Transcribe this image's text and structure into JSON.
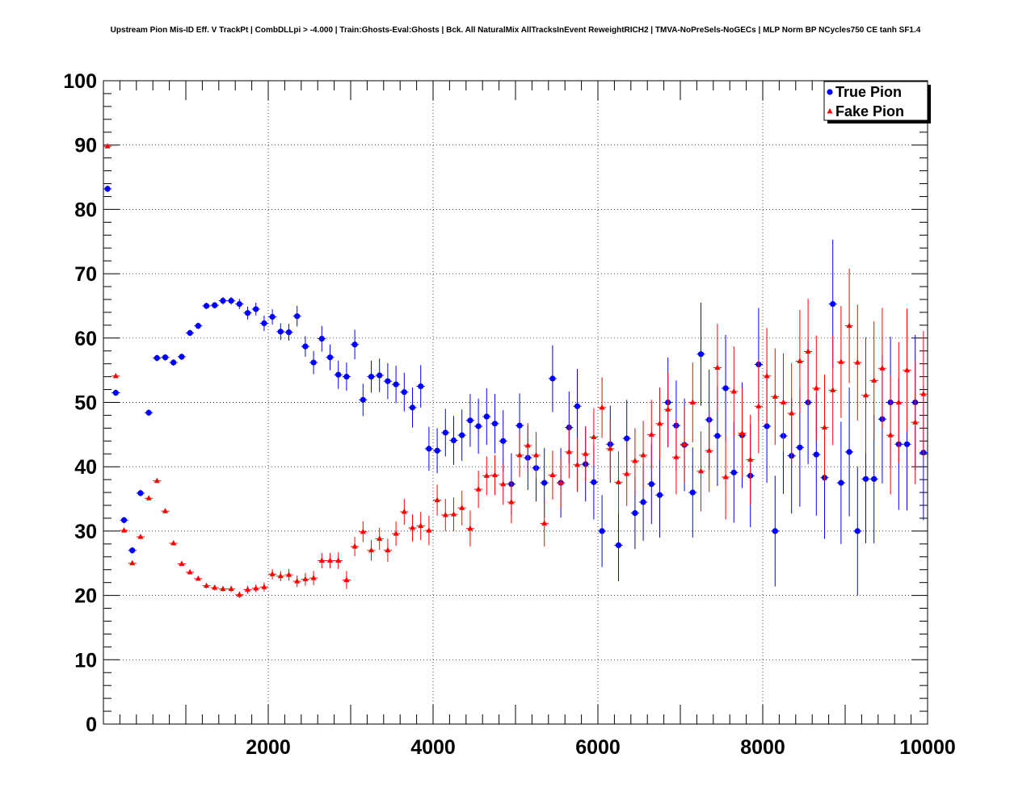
{
  "chart_data": {
    "type": "scatter",
    "title": "Upstream Pion Mis-ID Eff. V TrackPt | CombDLLpi > -4.000 | Train:Ghosts-Eval:Ghosts | Bck. All NaturalMix AllTracksInEvent ReweightRICH2 | TMVA-NoPreSels-NoGECs | MLP Norm BP NCycles750 CE tanh SF1.4",
    "xlabel": "",
    "ylabel": "",
    "xlim": [
      0,
      10000
    ],
    "ylim": [
      0,
      100
    ],
    "xticks": [
      2000,
      4000,
      6000,
      8000,
      10000
    ],
    "yticks": [
      0,
      10,
      20,
      30,
      40,
      50,
      60,
      70,
      80,
      90,
      100
    ],
    "grid": true,
    "legend_position": "top-right",
    "series": [
      {
        "name": "True Pion",
        "color": "#0000ff",
        "marker": "circle",
        "points": [
          [
            50,
            83.2,
            0.5
          ],
          [
            150,
            51.5,
            0.5
          ],
          [
            250,
            31.7,
            0.5
          ],
          [
            350,
            27,
            0.5
          ],
          [
            450,
            35.9,
            0.5
          ],
          [
            550,
            48.4,
            0.5
          ],
          [
            650,
            56.9,
            0.5
          ],
          [
            750,
            57,
            0.5
          ],
          [
            850,
            56.2,
            0.5
          ],
          [
            950,
            57.1,
            0.5
          ],
          [
            1050,
            60.8,
            0.5
          ],
          [
            1150,
            61.9,
            0.5
          ],
          [
            1250,
            65,
            0.5
          ],
          [
            1350,
            65.1,
            0.5
          ],
          [
            1450,
            65.8,
            0.6
          ],
          [
            1550,
            65.8,
            0.6
          ],
          [
            1650,
            65.3,
            0.8
          ],
          [
            1750,
            63.9,
            1
          ],
          [
            1850,
            64.5,
            1
          ],
          [
            1950,
            62.3,
            1.2
          ],
          [
            2050,
            63.3,
            1.2
          ],
          [
            2150,
            61,
            1.3
          ],
          [
            2250,
            60.9,
            1.3
          ],
          [
            2350,
            63.4,
            1.6
          ],
          [
            2450,
            58.7,
            1.6
          ],
          [
            2550,
            56.2,
            1.8
          ],
          [
            2650,
            59.9,
            2
          ],
          [
            2750,
            57,
            2
          ],
          [
            2850,
            54.3,
            2.2
          ],
          [
            2950,
            54,
            2.2
          ],
          [
            3050,
            59,
            2.3
          ],
          [
            3150,
            50.4,
            2.5
          ],
          [
            3250,
            54,
            2.5
          ],
          [
            3350,
            54.2,
            2.6
          ],
          [
            3450,
            53.3,
            2.8
          ],
          [
            3550,
            52.8,
            2.9
          ],
          [
            3650,
            51.6,
            3
          ],
          [
            3750,
            49.2,
            3.1
          ],
          [
            3850,
            52.5,
            3.3
          ],
          [
            3950,
            42.8,
            3.4
          ],
          [
            4050,
            42.5,
            3.5
          ],
          [
            4150,
            45.3,
            3.7
          ],
          [
            4250,
            44.1,
            3.8
          ],
          [
            4350,
            44.9,
            4
          ],
          [
            4450,
            47.2,
            4.1
          ],
          [
            4550,
            46.3,
            4.3
          ],
          [
            4650,
            47.8,
            4.4
          ],
          [
            4750,
            46.7,
            4.6
          ],
          [
            4850,
            44,
            4.8
          ],
          [
            4950,
            37.3,
            4.8
          ],
          [
            5050,
            46.4,
            5
          ],
          [
            5150,
            41.4,
            5
          ],
          [
            5250,
            39.8,
            5.2
          ],
          [
            5350,
            37.5,
            5.4
          ],
          [
            5450,
            53.7,
            5.2
          ],
          [
            5550,
            37.5,
            5.4
          ],
          [
            5650,
            46.1,
            5.6
          ],
          [
            5750,
            49.4,
            5.8
          ],
          [
            5850,
            40.4,
            5.8
          ],
          [
            5950,
            37.6,
            5.8
          ],
          [
            6050,
            30,
            5.6
          ],
          [
            6150,
            43.5,
            6
          ],
          [
            6250,
            27.8,
            5.6
          ],
          [
            6350,
            44.4,
            6
          ],
          [
            6450,
            32.8,
            5.6
          ],
          [
            6550,
            34.5,
            6
          ],
          [
            6650,
            37.3,
            6.2
          ],
          [
            6750,
            35.6,
            6.6
          ],
          [
            6850,
            50,
            7
          ],
          [
            6950,
            46.4,
            7
          ],
          [
            7050,
            43.4,
            7.2
          ],
          [
            7150,
            36,
            7
          ],
          [
            7250,
            57.5,
            8
          ],
          [
            7350,
            47.3,
            7.8
          ],
          [
            7450,
            44.8,
            7.8
          ],
          [
            7550,
            52.2,
            8.3
          ],
          [
            7650,
            39.1,
            7.8
          ],
          [
            7750,
            44.9,
            8.2
          ],
          [
            7850,
            38.6,
            8
          ],
          [
            7950,
            55.9,
            8.8
          ],
          [
            8050,
            46.3,
            8.8
          ],
          [
            8150,
            30,
            8.6
          ],
          [
            8250,
            44.8,
            9
          ],
          [
            8350,
            41.7,
            9
          ],
          [
            8450,
            43,
            9.2
          ],
          [
            8550,
            50,
            9.6
          ],
          [
            8650,
            41.9,
            9.5
          ],
          [
            8750,
            38.3,
            9.5
          ],
          [
            8850,
            65.3,
            10
          ],
          [
            8950,
            37.5,
            9.5
          ],
          [
            9050,
            42.3,
            10
          ],
          [
            9150,
            30,
            10
          ],
          [
            9250,
            38.1,
            10
          ],
          [
            9350,
            38.1,
            10
          ],
          [
            9450,
            47.4,
            10
          ],
          [
            9550,
            50,
            10.2
          ],
          [
            9650,
            43.5,
            10.2
          ],
          [
            9750,
            43.5,
            10.3
          ],
          [
            9850,
            50,
            10.5
          ],
          [
            9950,
            42.2,
            10.5
          ]
        ]
      },
      {
        "name": "Fake Pion",
        "color": "#ff0000",
        "marker": "triangle",
        "points": [
          [
            50,
            89.8,
            0.3
          ],
          [
            150,
            54.1,
            0.3
          ],
          [
            250,
            30.1,
            0.3
          ],
          [
            350,
            25,
            0.3
          ],
          [
            450,
            29.1,
            0.3
          ],
          [
            550,
            35.1,
            0.3
          ],
          [
            650,
            37.8,
            0.3
          ],
          [
            750,
            33.1,
            0.3
          ],
          [
            850,
            28.1,
            0.3
          ],
          [
            950,
            24.9,
            0.3
          ],
          [
            1050,
            23.6,
            0.3
          ],
          [
            1150,
            22.6,
            0.3
          ],
          [
            1250,
            21.5,
            0.4
          ],
          [
            1350,
            21.2,
            0.4
          ],
          [
            1450,
            21,
            0.4
          ],
          [
            1550,
            21,
            0.5
          ],
          [
            1650,
            20.1,
            0.5
          ],
          [
            1750,
            20.9,
            0.6
          ],
          [
            1850,
            21.1,
            0.6
          ],
          [
            1950,
            21.3,
            0.7
          ],
          [
            2050,
            23.3,
            0.8
          ],
          [
            2150,
            23,
            0.8
          ],
          [
            2250,
            23.2,
            0.9
          ],
          [
            2350,
            22.2,
            0.9
          ],
          [
            2450,
            22.5,
            1
          ],
          [
            2550,
            22.7,
            1.1
          ],
          [
            2650,
            25.4,
            1.2
          ],
          [
            2750,
            25.4,
            1.2
          ],
          [
            2850,
            25.4,
            1.3
          ],
          [
            2950,
            22.4,
            1.4
          ],
          [
            3050,
            27.6,
            1.5
          ],
          [
            3150,
            29.9,
            1.6
          ],
          [
            3250,
            27,
            1.6
          ],
          [
            3350,
            28.8,
            1.7
          ],
          [
            3450,
            27,
            1.8
          ],
          [
            3550,
            29.6,
            1.9
          ],
          [
            3650,
            33,
            2
          ],
          [
            3750,
            30.5,
            2.1
          ],
          [
            3850,
            30.8,
            2.2
          ],
          [
            3950,
            30.1,
            2.3
          ],
          [
            4050,
            34.8,
            2.4
          ],
          [
            4150,
            32.5,
            2.5
          ],
          [
            4250,
            32.6,
            2.6
          ],
          [
            4350,
            33.6,
            2.7
          ],
          [
            4450,
            30.4,
            2.8
          ],
          [
            4550,
            36.5,
            2.9
          ],
          [
            4650,
            38.6,
            3
          ],
          [
            4750,
            38.7,
            3.1
          ],
          [
            4850,
            37.3,
            3.2
          ],
          [
            4950,
            34.5,
            3.3
          ],
          [
            5050,
            41.8,
            3.4
          ],
          [
            5150,
            43.3,
            3.5
          ],
          [
            5250,
            41.8,
            3.6
          ],
          [
            5350,
            31.2,
            3.6
          ],
          [
            5450,
            38.7,
            3.8
          ],
          [
            5550,
            37.5,
            3.9
          ],
          [
            5650,
            42.3,
            4.1
          ],
          [
            5750,
            40.3,
            4.2
          ],
          [
            5850,
            42,
            4.3
          ],
          [
            5950,
            44.6,
            4.5
          ],
          [
            6050,
            49.2,
            4.7
          ],
          [
            6150,
            42.8,
            4.7
          ],
          [
            6250,
            37.6,
            4.8
          ],
          [
            6350,
            38.9,
            5
          ],
          [
            6450,
            40.9,
            5.1
          ],
          [
            6550,
            41.8,
            5.3
          ],
          [
            6650,
            45,
            5.4
          ],
          [
            6750,
            46.7,
            5.6
          ],
          [
            6850,
            48.9,
            5.8
          ],
          [
            6950,
            41.5,
            5.8
          ],
          [
            7050,
            43.5,
            6
          ],
          [
            7150,
            50,
            6.2
          ],
          [
            7250,
            39.3,
            6.2
          ],
          [
            7350,
            42.5,
            6.4
          ],
          [
            7450,
            55.4,
            6.8
          ],
          [
            7550,
            38.4,
            6.6
          ],
          [
            7650,
            51.7,
            7
          ],
          [
            7750,
            45.2,
            7
          ],
          [
            7850,
            41.1,
            7
          ],
          [
            7950,
            49.4,
            7.3
          ],
          [
            8050,
            54.1,
            7.5
          ],
          [
            8150,
            50.9,
            7.5
          ],
          [
            8250,
            50,
            7.6
          ],
          [
            8350,
            48.3,
            7.8
          ],
          [
            8450,
            56.4,
            8
          ],
          [
            8550,
            57.9,
            8.2
          ],
          [
            8650,
            52.2,
            8.2
          ],
          [
            8750,
            46.1,
            8.2
          ],
          [
            8850,
            51.9,
            8.5
          ],
          [
            8950,
            56.3,
            8.7
          ],
          [
            9050,
            61.9,
            8.9
          ],
          [
            9150,
            56.2,
            9
          ],
          [
            9250,
            51.1,
            9
          ],
          [
            9350,
            53.4,
            9.2
          ],
          [
            9450,
            55.3,
            9.4
          ],
          [
            9550,
            44.9,
            9.2
          ],
          [
            9650,
            50,
            9.4
          ],
          [
            9750,
            55,
            9.6
          ],
          [
            9850,
            46.9,
            9.6
          ],
          [
            9950,
            51.3,
            9.8
          ]
        ]
      }
    ]
  }
}
